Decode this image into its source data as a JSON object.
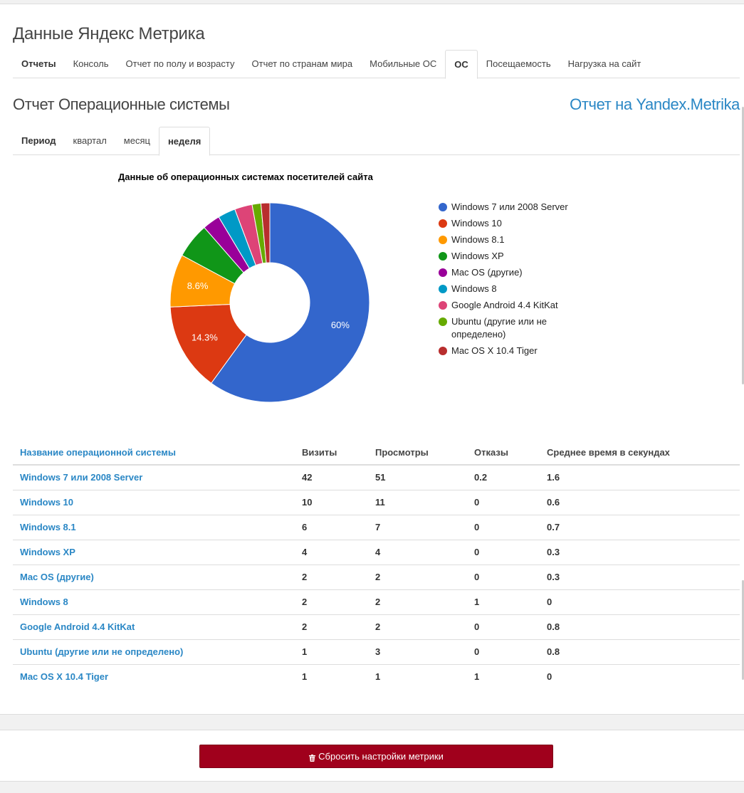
{
  "page": {
    "title": "Данные Яндекс Метрика"
  },
  "main_tabs": [
    {
      "label": "Отчеты",
      "active": false,
      "bold": true
    },
    {
      "label": "Консоль",
      "active": false
    },
    {
      "label": "Отчет по полу и возрасту",
      "active": false
    },
    {
      "label": "Отчет по странам мира",
      "active": false
    },
    {
      "label": "Мобильные ОС",
      "active": false
    },
    {
      "label": "ОС",
      "active": true
    },
    {
      "label": "Посещаемость",
      "active": false
    },
    {
      "label": "Нагрузка на сайт",
      "active": false
    }
  ],
  "report": {
    "title": "Отчет Операционные системы",
    "link_label": "Отчет на Yandex.Metrika"
  },
  "period_tabs": [
    {
      "label": "Период",
      "active": false,
      "bold": true
    },
    {
      "label": "квартал",
      "active": false
    },
    {
      "label": "месяц",
      "active": false
    },
    {
      "label": "неделя",
      "active": true
    }
  ],
  "chart_data": {
    "type": "pie",
    "donut": true,
    "title": "Данные об операционных системах посетителей сайта",
    "legend_position": "right",
    "categories": [
      "Windows 7 или 2008 Server",
      "Windows 10",
      "Windows 8.1",
      "Windows XP",
      "Mac OS (другие)",
      "Windows 8",
      "Google Android 4.4 KitKat",
      "Ubuntu (другие или не определено)",
      "Mac OS X 10.4 Tiger"
    ],
    "values": [
      42,
      10,
      6,
      4,
      2,
      2,
      2,
      1,
      1
    ],
    "colors": [
      "#3366cc",
      "#dc3912",
      "#ff9900",
      "#109618",
      "#990099",
      "#0099c6",
      "#dd4477",
      "#66aa00",
      "#b82e2e"
    ],
    "slice_labels": [
      "60%",
      "14.3%",
      "8.6%",
      "",
      "",
      "",
      "",
      "",
      ""
    ]
  },
  "table": {
    "headers": [
      "Название операционной системы",
      "Визиты",
      "Просмотры",
      "Отказы",
      "Среднее время в секундах"
    ],
    "rows": [
      [
        "Windows 7 или 2008 Server",
        "42",
        "51",
        "0.2",
        "1.6"
      ],
      [
        "Windows 10",
        "10",
        "11",
        "0",
        "0.6"
      ],
      [
        "Windows 8.1",
        "6",
        "7",
        "0",
        "0.7"
      ],
      [
        "Windows XP",
        "4",
        "4",
        "0",
        "0.3"
      ],
      [
        "Mac OS (другие)",
        "2",
        "2",
        "0",
        "0.3"
      ],
      [
        "Windows 8",
        "2",
        "2",
        "1",
        "0"
      ],
      [
        "Google Android 4.4 KitKat",
        "2",
        "2",
        "0",
        "0.8"
      ],
      [
        "Ubuntu (другие или не определено)",
        "1",
        "3",
        "0",
        "0.8"
      ],
      [
        "Mac OS X 10.4 Tiger",
        "1",
        "1",
        "1",
        "0"
      ]
    ]
  },
  "footer": {
    "reset_label": "Сбросить настройки метрики",
    "reset_icon": "trash-icon"
  }
}
